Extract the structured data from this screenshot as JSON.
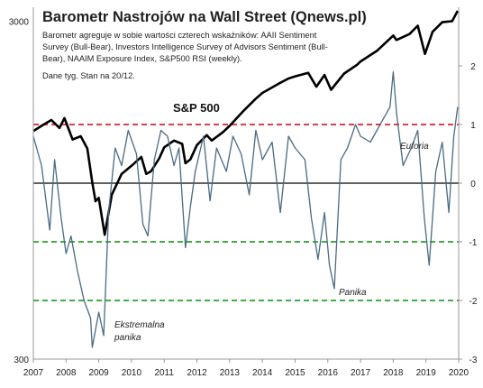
{
  "chart_data": {
    "type": "line",
    "title": "Barometr Nastrojów na Wall Street (Qnews.pl)",
    "description_lines": [
      "Barometr agreguje w sobie wartości czterech wskaźników: AAII Sentiment",
      "Survey (Bull-Bear), Investors Intelligence Survey of Advisors Sentiment (Bull-",
      "Bear), NAAIM Exposure Index, S&P500 RSI (weekly)."
    ],
    "note": "Dane tyg. Stan na 20/12.",
    "x_ticks": [
      "2007",
      "2008",
      "2009",
      "2010",
      "2011",
      "2012",
      "2013",
      "2014",
      "2015",
      "2016",
      "2017",
      "2018",
      "2019",
      "2020"
    ],
    "xlim": [
      2007,
      2020
    ],
    "left_axis": {
      "scale": "log",
      "ylim": [
        300,
        3300
      ],
      "tick_labels": [
        "3000",
        "300"
      ]
    },
    "right_axis": {
      "ylim": [
        -3,
        3
      ],
      "tick_labels": [
        "2",
        "1",
        "0",
        "-1",
        "-2",
        "-3"
      ]
    },
    "annotations": {
      "sp500": "S&P 500",
      "euforia": "Euforia",
      "panika": "Panika",
      "ekstremalna_1": "Ekstremalna",
      "ekstremalna_2": "panika"
    },
    "reference_lines": [
      {
        "value": 1,
        "style": "dashed",
        "color": "#d62728"
      },
      {
        "value": 0,
        "style": "solid",
        "color": "#000000"
      },
      {
        "value": -1,
        "style": "dashed",
        "color": "#2ca02c"
      },
      {
        "value": -2,
        "style": "dashed",
        "color": "#2ca02c"
      }
    ],
    "series": [
      {
        "axis": "left",
        "color": "#000000",
        "x": [
          2007.0,
          2007.3,
          2007.55,
          2007.8,
          2007.95,
          2008.2,
          2008.45,
          2008.65,
          2008.8,
          2008.9,
          2009.0,
          2009.18,
          2009.4,
          2009.7,
          2010.0,
          2010.3,
          2010.45,
          2010.6,
          2010.85,
          2011.0,
          2011.3,
          2011.55,
          2011.65,
          2011.8,
          2012.0,
          2012.3,
          2012.45,
          2012.8,
          2013.0,
          2013.4,
          2013.8,
          2014.0,
          2014.5,
          2014.8,
          2015.0,
          2015.4,
          2015.65,
          2015.9,
          2016.1,
          2016.5,
          2016.9,
          2017.0,
          2017.5,
          2018.0,
          2018.1,
          2018.5,
          2018.75,
          2018.97,
          2019.2,
          2019.5,
          2019.8,
          2019.97
        ],
        "y": [
          1420,
          1480,
          1530,
          1450,
          1550,
          1340,
          1370,
          1260,
          1000,
          880,
          900,
          700,
          920,
          1060,
          1120,
          1190,
          1060,
          1080,
          1180,
          1270,
          1330,
          1300,
          1140,
          1170,
          1290,
          1380,
          1330,
          1410,
          1470,
          1620,
          1770,
          1840,
          1960,
          2030,
          2060,
          2110,
          1920,
          2080,
          1880,
          2100,
          2230,
          2280,
          2450,
          2720,
          2640,
          2750,
          2910,
          2400,
          2790,
          2980,
          3000,
          3220
        ]
      },
      {
        "axis": "right",
        "color": "#4a6b83",
        "x": [
          2007.0,
          2007.25,
          2007.5,
          2007.65,
          2007.85,
          2008.0,
          2008.15,
          2008.35,
          2008.55,
          2008.75,
          2008.8,
          2008.9,
          2009.0,
          2009.15,
          2009.3,
          2009.5,
          2009.7,
          2009.9,
          2010.15,
          2010.35,
          2010.5,
          2010.7,
          2010.9,
          2011.1,
          2011.3,
          2011.45,
          2011.65,
          2011.8,
          2011.95,
          2012.2,
          2012.4,
          2012.6,
          2012.9,
          2013.1,
          2013.35,
          2013.6,
          2013.8,
          2014.0,
          2014.3,
          2014.55,
          2014.8,
          2015.0,
          2015.3,
          2015.5,
          2015.7,
          2015.9,
          2016.05,
          2016.2,
          2016.4,
          2016.6,
          2016.85,
          2017.0,
          2017.3,
          2017.6,
          2017.9,
          2018.0,
          2018.1,
          2018.3,
          2018.55,
          2018.75,
          2018.95,
          2019.1,
          2019.3,
          2019.5,
          2019.7,
          2019.85,
          2019.97
        ],
        "y": [
          0.8,
          0.3,
          -0.8,
          0.4,
          -0.6,
          -1.2,
          -0.9,
          -1.5,
          -2.0,
          -2.3,
          -2.8,
          -2.5,
          -2.2,
          -2.6,
          -0.5,
          0.6,
          0.3,
          0.9,
          0.5,
          -0.7,
          -0.9,
          0.4,
          0.9,
          0.8,
          0.3,
          0.6,
          -1.1,
          -0.4,
          0.2,
          0.8,
          -0.3,
          0.6,
          0.2,
          0.8,
          0.5,
          -0.2,
          0.9,
          0.4,
          0.7,
          -0.5,
          0.8,
          0.6,
          0.4,
          -0.6,
          -1.3,
          -0.5,
          -1.4,
          -1.8,
          0.4,
          0.6,
          1.0,
          0.8,
          0.7,
          1.0,
          1.3,
          1.9,
          1.2,
          0.3,
          0.6,
          0.9,
          -0.6,
          -1.4,
          0.2,
          0.7,
          -0.5,
          0.8,
          1.3
        ]
      }
    ]
  }
}
